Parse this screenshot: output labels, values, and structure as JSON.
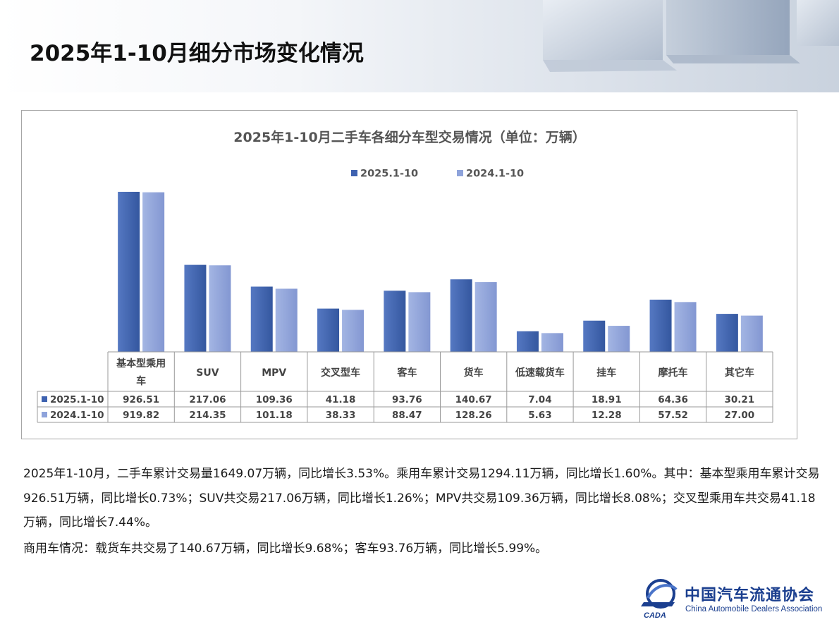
{
  "page": {
    "title": "2025年1-10月细分市场变化情况"
  },
  "chart_data": {
    "type": "bar",
    "title": "2025年1-10月二手车各细分车型交易情况（单位：万辆）",
    "categories": [
      "基本型乘用车",
      "SUV",
      "MPV",
      "交叉型车",
      "客车",
      "货车",
      "低速载货车",
      "挂车",
      "摩托车",
      "其它车"
    ],
    "series": [
      {
        "name": "2025.1-10",
        "values": [
          "926.51",
          "217.06",
          "109.36",
          "41.18",
          "93.76",
          "140.67",
          "7.04",
          "18.91",
          "64.36",
          "30.21"
        ],
        "color": "#3e62b0"
      },
      {
        "name": "2024.1-10",
        "values": [
          "919.82",
          "214.35",
          "101.18",
          "38.33",
          "88.47",
          "128.26",
          "5.63",
          "12.28",
          "57.52",
          "27.00"
        ],
        "color": "#8ea3db"
      }
    ],
    "legend_position": "top-center",
    "data_table": true,
    "gridlines": false,
    "axis": "none shown; bar heights are not to a linear scale in the original"
  },
  "text": {
    "p1": "2025年1-10月，二手车累计交易量1649.07万辆，同比增长3.53%。乘用车累计交易1294.11万辆，同比增长1.60%。其中：基本型乘用车累计交易926.51万辆，同比增长0.73%；SUV共交易217.06万辆，同比增长1.26%；MPV共交易109.36万辆，同比增长8.08%；交叉型乘用车共交易41.18万辆，同比增长7.44%。",
    "p2": "商用车情况：载货车共交易了140.67万辆，同比增长9.68%；客车93.76万辆，同比增长5.99%。"
  },
  "logo": {
    "cn": "中国汽车流通协会",
    "en": "China Automobile Dealers Association",
    "mark_text": "CADA"
  }
}
